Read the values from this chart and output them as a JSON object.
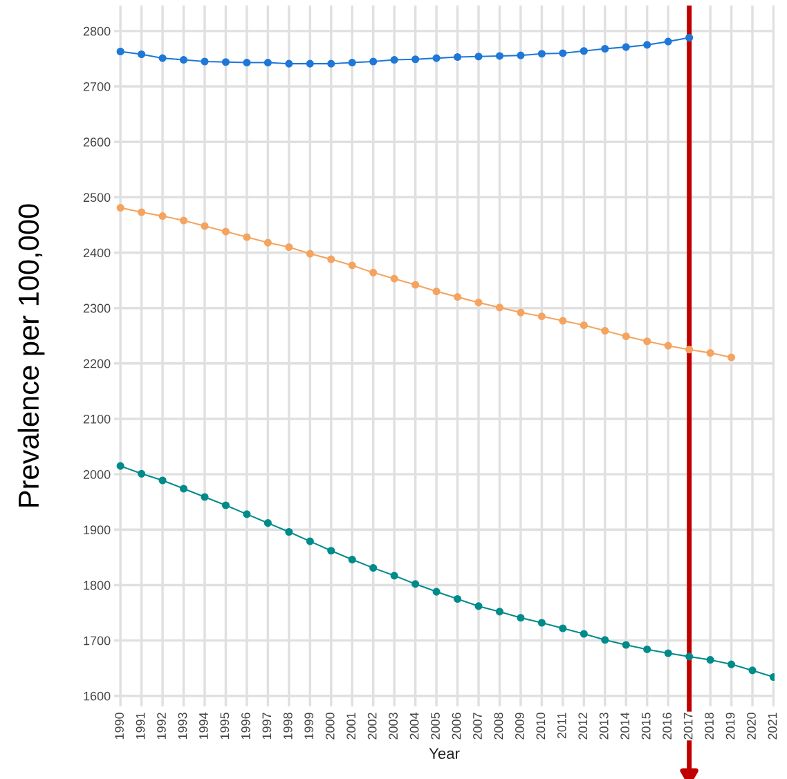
{
  "chart_data": {
    "type": "line",
    "xlabel": "Year",
    "ylabel": "Prevalence per 100,000",
    "categories": [
      "1990",
      "1991",
      "1992",
      "1993",
      "1994",
      "1995",
      "1996",
      "1997",
      "1998",
      "1999",
      "2000",
      "2001",
      "2002",
      "2003",
      "2004",
      "2005",
      "2006",
      "2007",
      "2008",
      "2009",
      "2010",
      "2011",
      "2012",
      "2013",
      "2014",
      "2015",
      "2016",
      "2017",
      "2018",
      "2019",
      "2020",
      "2021"
    ],
    "series": [
      {
        "color": "#1f78d8",
        "values": [
          2763,
          2758,
          2751,
          2748,
          2745,
          2744,
          2743,
          2743,
          2741,
          2741,
          2741,
          2743,
          2745,
          2748,
          2749,
          2751,
          2753,
          2754,
          2755,
          2756,
          2759,
          2760,
          2764,
          2768,
          2771,
          2775,
          2781,
          2788,
          null,
          null,
          null,
          null
        ]
      },
      {
        "color": "#f4a460",
        "values": [
          2481,
          2473,
          2466,
          2458,
          2448,
          2438,
          2428,
          2418,
          2410,
          2398,
          2388,
          2377,
          2364,
          2353,
          2342,
          2330,
          2320,
          2310,
          2301,
          2292,
          2285,
          2277,
          2269,
          2259,
          2249,
          2240,
          2232,
          2225,
          2219,
          2211,
          null,
          null
        ]
      },
      {
        "color": "#008b8b",
        "values": [
          2015,
          2001,
          1989,
          1974,
          1959,
          1944,
          1928,
          1912,
          1896,
          1879,
          1862,
          1846,
          1831,
          1817,
          1802,
          1788,
          1775,
          1762,
          1752,
          1741,
          1732,
          1722,
          1712,
          1701,
          1692,
          1684,
          1677,
          1671,
          1665,
          1657,
          1646,
          1634
        ]
      }
    ],
    "ylim": [
      1581,
      2846
    ],
    "yticks": [
      1600,
      1700,
      1800,
      1900,
      2000,
      2100,
      2200,
      2300,
      2400,
      2500,
      2600,
      2700,
      2800
    ],
    "grid": true,
    "marker": "circle",
    "line_style": "solid",
    "ref_lines": [
      {
        "axis": "x",
        "value": "2017",
        "color": "#c00000"
      }
    ]
  }
}
